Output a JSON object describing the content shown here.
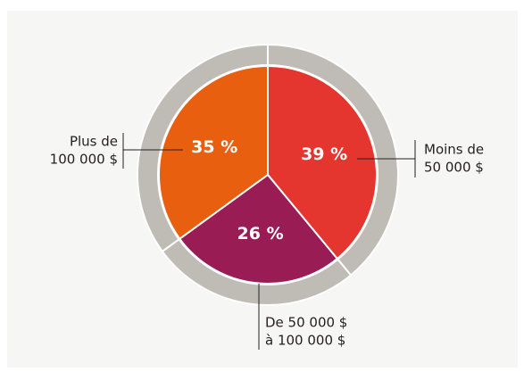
{
  "chart_data": {
    "type": "pie",
    "categories": [
      [
        "Moins de",
        "50 000 $"
      ],
      [
        "De 50 000 $",
        "à 100 000 $"
      ],
      [
        "Plus de",
        "100 000 $"
      ]
    ],
    "values": [
      39,
      26,
      35
    ],
    "value_labels": [
      "39 %",
      "26 %",
      "35 %"
    ],
    "colors": [
      "#e5352f",
      "#9a1c55",
      "#e8600f"
    ],
    "ring_color": "#bebcb5"
  }
}
